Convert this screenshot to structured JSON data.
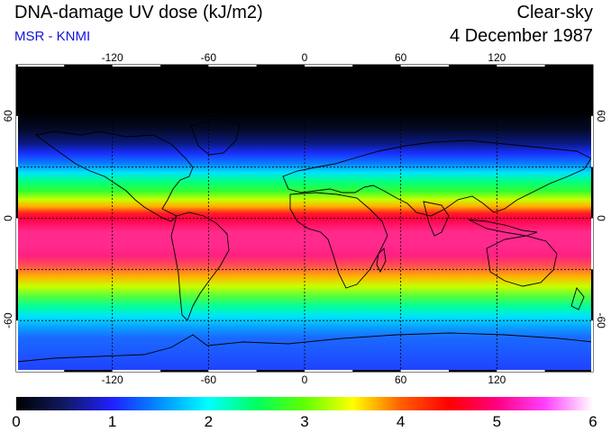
{
  "header": {
    "title": "DNA-damage UV dose (kJ/m2)",
    "source": "MSR - KNMI",
    "sky_condition": "Clear-sky",
    "date": "4 December 1987"
  },
  "map": {
    "lon_ticks": [
      {
        "value": -120,
        "label": "-120"
      },
      {
        "value": -60,
        "label": "-60"
      },
      {
        "value": 0,
        "label": "0"
      },
      {
        "value": 60,
        "label": "60"
      },
      {
        "value": 120,
        "label": "120"
      }
    ],
    "lat_ticks_left": [
      {
        "value": 60,
        "label": "60"
      },
      {
        "value": 0,
        "label": "0"
      },
      {
        "value": -60,
        "label": "-60"
      }
    ],
    "lat_ticks_right": [
      {
        "value": 60,
        "label": "60"
      },
      {
        "value": 0,
        "label": "0"
      },
      {
        "value": -60,
        "label": "-60"
      }
    ],
    "lon_range": [
      -180,
      180
    ],
    "lat_range": [
      -90,
      90
    ],
    "bands": [
      {
        "lat": 90,
        "color": "#000000"
      },
      {
        "lat": 62,
        "color": "#000000"
      },
      {
        "lat": 52,
        "color": "#050a28"
      },
      {
        "lat": 44,
        "color": "#0a1a80"
      },
      {
        "lat": 38,
        "color": "#1a30ff"
      },
      {
        "lat": 32,
        "color": "#0a7fff"
      },
      {
        "lat": 27,
        "color": "#00e0ff"
      },
      {
        "lat": 22,
        "color": "#00ff8c"
      },
      {
        "lat": 16,
        "color": "#30ff30"
      },
      {
        "lat": 11,
        "color": "#c8ff00"
      },
      {
        "lat": 7,
        "color": "#ffb000"
      },
      {
        "lat": 3,
        "color": "#ff2020"
      },
      {
        "lat": 0,
        "color": "#ff0040"
      },
      {
        "lat": -8,
        "color": "#ff2a8c"
      },
      {
        "lat": -16,
        "color": "#ff2a8c"
      },
      {
        "lat": -22,
        "color": "#ff2080"
      },
      {
        "lat": -28,
        "color": "#ff5050"
      },
      {
        "lat": -34,
        "color": "#ffb000"
      },
      {
        "lat": -40,
        "color": "#c8ff00"
      },
      {
        "lat": -46,
        "color": "#50ff40"
      },
      {
        "lat": -52,
        "color": "#00ffa0"
      },
      {
        "lat": -58,
        "color": "#00e0ff"
      },
      {
        "lat": -64,
        "color": "#0a9fff"
      },
      {
        "lat": -70,
        "color": "#1a6aff"
      },
      {
        "lat": -90,
        "color": "#2040ff"
      }
    ]
  },
  "colorbar": {
    "labels": [
      "0",
      "1",
      "2",
      "3",
      "4",
      "5",
      "6"
    ],
    "stops": [
      {
        "value": 0,
        "color": "#000000"
      },
      {
        "value": 0.5,
        "color": "#101a60"
      },
      {
        "value": 1.0,
        "color": "#2020ff"
      },
      {
        "value": 1.5,
        "color": "#0090ff"
      },
      {
        "value": 2.0,
        "color": "#00ffff"
      },
      {
        "value": 2.5,
        "color": "#00ff60"
      },
      {
        "value": 3.0,
        "color": "#60ff00"
      },
      {
        "value": 3.5,
        "color": "#ffff00"
      },
      {
        "value": 4.0,
        "color": "#ff6000"
      },
      {
        "value": 4.5,
        "color": "#ff0000"
      },
      {
        "value": 5.0,
        "color": "#ff0080"
      },
      {
        "value": 5.5,
        "color": "#ff40ff"
      },
      {
        "value": 6.0,
        "color": "#ffffff"
      }
    ]
  }
}
